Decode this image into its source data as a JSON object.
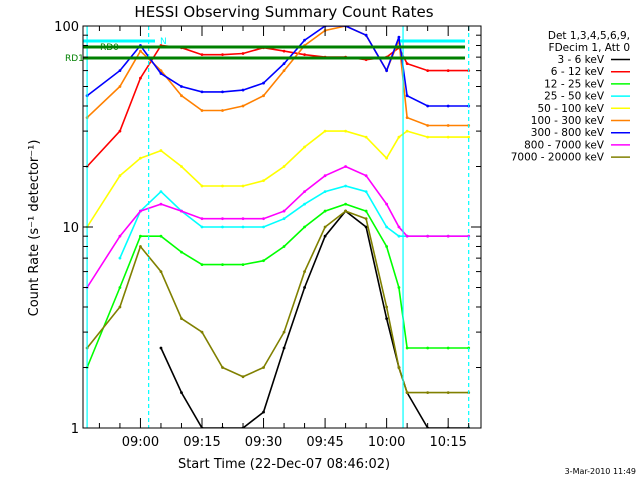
{
  "chart_data": {
    "type": "line",
    "title": "HESSI Observing Summary Count Rates",
    "xlabel": "Start Time (22-Dec-07 08:46:02)",
    "ylabel": "Count Rate (s⁻¹ detector⁻¹)",
    "y_scale": "log",
    "ylim": [
      1,
      100
    ],
    "x_range": [
      "08:46",
      "10:23"
    ],
    "x_ticks": [
      "09:00",
      "09:15",
      "09:30",
      "09:45",
      "10:00",
      "10:15"
    ],
    "y_ticks": [
      "1",
      "10",
      "100"
    ],
    "legend_header": [
      "Det 1,3,4,5,6,9,",
      "FDecim 1, Att 0"
    ],
    "legend_position": "right",
    "annotations": {
      "rd0": "RD0",
      "rd1": "RD1",
      "n": "N"
    },
    "footer_date": "3-Mar-2010 11:49",
    "vlines": {
      "solid_cyan": [
        "08:47",
        "10:04"
      ],
      "dashed_cyan": [
        "09:02",
        "10:20"
      ]
    },
    "x": [
      "08:47",
      "08:55",
      "09:00",
      "09:05",
      "09:10",
      "09:15",
      "09:20",
      "09:25",
      "09:30",
      "09:35",
      "09:40",
      "09:45",
      "09:50",
      "09:55",
      "10:00",
      "10:03",
      "10:05",
      "10:10",
      "10:15",
      "10:20"
    ],
    "series": [
      {
        "name": "3 - 6 keV",
        "color": "#000000",
        "values": [
          null,
          null,
          null,
          2.5,
          1.5,
          1,
          1,
          1,
          1.2,
          2.5,
          5,
          9,
          12,
          10,
          3.5,
          2,
          1.5,
          1,
          1,
          1
        ]
      },
      {
        "name": "6 - 12 keV",
        "color": "#ff0000",
        "values": [
          20,
          30,
          55,
          80,
          78,
          72,
          72,
          73,
          78,
          75,
          72,
          70,
          70,
          68,
          70,
          78,
          65,
          60,
          60,
          60
        ]
      },
      {
        "name": "12 - 25 keV",
        "color": "#00ff00",
        "values": [
          2,
          5,
          9,
          9,
          7.5,
          6.5,
          6.5,
          6.5,
          6.8,
          8,
          10,
          12,
          13,
          12,
          8,
          5,
          2.5,
          2.5,
          2.5,
          2.5
        ]
      },
      {
        "name": "25 - 50 keV",
        "color": "#00ffff",
        "values": [
          null,
          7,
          12,
          15,
          12,
          10,
          10,
          10,
          10,
          11,
          13,
          15,
          16,
          15,
          10,
          9,
          9,
          9,
          9,
          9
        ]
      },
      {
        "name": "50 - 100 keV",
        "color": "#ffff00",
        "values": [
          10,
          18,
          22,
          24,
          20,
          16,
          16,
          16,
          17,
          20,
          25,
          30,
          30,
          28,
          22,
          28,
          30,
          28,
          28,
          28
        ]
      },
      {
        "name": "100 - 300 keV",
        "color": "#ff8000",
        "values": [
          35,
          50,
          75,
          60,
          45,
          38,
          38,
          40,
          45,
          60,
          80,
          95,
          100,
          90,
          60,
          85,
          35,
          32,
          32,
          32
        ]
      },
      {
        "name": "300 - 800 keV",
        "color": "#0000ff",
        "values": [
          45,
          60,
          80,
          58,
          50,
          47,
          47,
          48,
          52,
          65,
          85,
          100,
          100,
          90,
          60,
          88,
          45,
          40,
          40,
          40
        ]
      },
      {
        "name": "800 - 7000 keV",
        "color": "#ff00ff",
        "values": [
          5,
          9,
          12,
          13,
          12,
          11,
          11,
          11,
          11,
          12,
          15,
          18,
          20,
          18,
          13,
          10,
          9,
          9,
          9,
          9
        ]
      },
      {
        "name": "7000 - 20000 keV",
        "color": "#808000",
        "values": [
          2.5,
          4,
          8,
          6,
          3.5,
          3,
          2,
          1.8,
          2,
          3,
          6,
          10,
          12,
          11,
          4,
          2,
          1.5,
          1.5,
          1.5,
          1.5
        ]
      }
    ],
    "grid": false
  }
}
